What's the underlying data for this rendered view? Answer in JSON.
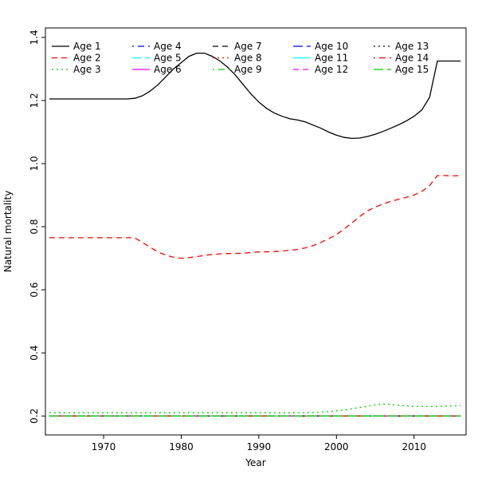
{
  "figure": {
    "background": "#ffffff"
  },
  "chart_data": {
    "type": "line",
    "title": "",
    "xlabel": "Year",
    "ylabel": "Natural mortality",
    "xlim": [
      1962.5,
      2016.7
    ],
    "ylim": [
      0.14,
      1.43
    ],
    "xticks": [
      1970,
      1980,
      1990,
      2000,
      2010
    ],
    "yticks": [
      0.2,
      0.4,
      0.6,
      0.8,
      1.0,
      1.2,
      1.4
    ],
    "grid": false,
    "legend_position": "top-left",
    "legend_rows": 3,
    "legend_columns": 5,
    "series": [
      {
        "name": "Age 1",
        "color": "#000000",
        "linetype": "solid",
        "points": [
          [
            1963,
            1.205
          ],
          [
            1973,
            1.205
          ],
          [
            1974,
            1.207
          ],
          [
            1975,
            1.215
          ],
          [
            1976,
            1.23
          ],
          [
            1977,
            1.25
          ],
          [
            1978,
            1.275
          ],
          [
            1979,
            1.3
          ],
          [
            1980,
            1.32
          ],
          [
            1981,
            1.34
          ],
          [
            1982,
            1.35
          ],
          [
            1983,
            1.35
          ],
          [
            1984,
            1.34
          ],
          [
            1985,
            1.325
          ],
          [
            1986,
            1.305
          ],
          [
            1987,
            1.28
          ],
          [
            1988,
            1.25
          ],
          [
            1989,
            1.22
          ],
          [
            1990,
            1.195
          ],
          [
            1991,
            1.175
          ],
          [
            1992,
            1.16
          ],
          [
            1993,
            1.15
          ],
          [
            1994,
            1.142
          ],
          [
            1995,
            1.138
          ],
          [
            1996,
            1.132
          ],
          [
            1997,
            1.122
          ],
          [
            1998,
            1.112
          ],
          [
            1999,
            1.1
          ],
          [
            2000,
            1.09
          ],
          [
            2001,
            1.083
          ],
          [
            2002,
            1.08
          ],
          [
            2003,
            1.081
          ],
          [
            2004,
            1.086
          ],
          [
            2005,
            1.093
          ],
          [
            2006,
            1.102
          ],
          [
            2007,
            1.112
          ],
          [
            2008,
            1.123
          ],
          [
            2009,
            1.135
          ],
          [
            2010,
            1.15
          ],
          [
            2011,
            1.17
          ],
          [
            2012,
            1.21
          ],
          [
            2013,
            1.325
          ],
          [
            2014,
            1.325
          ],
          [
            2015,
            1.325
          ],
          [
            2016,
            1.325
          ]
        ]
      },
      {
        "name": "Age 2",
        "color": "#FF0000",
        "linetype": "dashed",
        "points": [
          [
            1963,
            0.765
          ],
          [
            1973,
            0.765
          ],
          [
            1974,
            0.765
          ],
          [
            1975,
            0.75
          ],
          [
            1976,
            0.735
          ],
          [
            1977,
            0.72
          ],
          [
            1978,
            0.71
          ],
          [
            1979,
            0.703
          ],
          [
            1980,
            0.7
          ],
          [
            1981,
            0.702
          ],
          [
            1982,
            0.705
          ],
          [
            1983,
            0.709
          ],
          [
            1984,
            0.712
          ],
          [
            1985,
            0.714
          ],
          [
            1986,
            0.715
          ],
          [
            1988,
            0.716
          ],
          [
            1990,
            0.72
          ],
          [
            1992,
            0.721
          ],
          [
            1994,
            0.725
          ],
          [
            1995,
            0.728
          ],
          [
            1996,
            0.733
          ],
          [
            1997,
            0.74
          ],
          [
            1998,
            0.75
          ],
          [
            1999,
            0.762
          ],
          [
            2000,
            0.775
          ],
          [
            2001,
            0.793
          ],
          [
            2002,
            0.812
          ],
          [
            2003,
            0.832
          ],
          [
            2004,
            0.85
          ],
          [
            2005,
            0.862
          ],
          [
            2006,
            0.872
          ],
          [
            2007,
            0.88
          ],
          [
            2008,
            0.887
          ],
          [
            2009,
            0.893
          ],
          [
            2010,
            0.9
          ],
          [
            2011,
            0.912
          ],
          [
            2012,
            0.93
          ],
          [
            2013,
            0.962
          ],
          [
            2014,
            0.962
          ],
          [
            2015,
            0.961
          ],
          [
            2016,
            0.962
          ]
        ]
      },
      {
        "name": "Age 3",
        "color": "#00CD00",
        "linetype": "dotted",
        "points": [
          [
            1963,
            0.21
          ],
          [
            1995,
            0.21
          ],
          [
            1997,
            0.211
          ],
          [
            1999,
            0.214
          ],
          [
            2001,
            0.219
          ],
          [
            2003,
            0.227
          ],
          [
            2005,
            0.235
          ],
          [
            2006,
            0.238
          ],
          [
            2007,
            0.237
          ],
          [
            2008,
            0.234
          ],
          [
            2009,
            0.232
          ],
          [
            2010,
            0.23
          ],
          [
            2012,
            0.23
          ],
          [
            2013,
            0.23
          ],
          [
            2014,
            0.231
          ],
          [
            2015,
            0.232
          ],
          [
            2016,
            0.233
          ]
        ]
      },
      {
        "name": "Age 4",
        "color": "#0000FF",
        "linetype": "dotdash",
        "points": [
          [
            1963,
            0.2
          ],
          [
            2016,
            0.2
          ]
        ]
      },
      {
        "name": "Age 5",
        "color": "#00FFFF",
        "linetype": "longdash",
        "points": [
          [
            1963,
            0.2
          ],
          [
            2016,
            0.2
          ]
        ]
      },
      {
        "name": "Age 6",
        "color": "#FF00FF",
        "linetype": "solid",
        "points": [
          [
            1963,
            0.2
          ],
          [
            2016,
            0.2
          ]
        ]
      },
      {
        "name": "Age 7",
        "color": "#000000",
        "linetype": "dashed",
        "points": [
          [
            1963,
            0.2
          ],
          [
            2016,
            0.2
          ]
        ]
      },
      {
        "name": "Age 8",
        "color": "#FF0000",
        "linetype": "dotted",
        "points": [
          [
            1963,
            0.2
          ],
          [
            2016,
            0.2
          ]
        ]
      },
      {
        "name": "Age 9",
        "color": "#00CD00",
        "linetype": "dotdash",
        "points": [
          [
            1963,
            0.2
          ],
          [
            2016,
            0.2
          ]
        ]
      },
      {
        "name": "Age 10",
        "color": "#0000FF",
        "linetype": "longdash",
        "points": [
          [
            1963,
            0.2
          ],
          [
            2016,
            0.2
          ]
        ]
      },
      {
        "name": "Age 11",
        "color": "#00FFFF",
        "linetype": "solid",
        "points": [
          [
            1963,
            0.2
          ],
          [
            2016,
            0.2
          ]
        ]
      },
      {
        "name": "Age 12",
        "color": "#FF00FF",
        "linetype": "dashed",
        "points": [
          [
            1963,
            0.2
          ],
          [
            2016,
            0.2
          ]
        ]
      },
      {
        "name": "Age 13",
        "color": "#000000",
        "linetype": "dotted",
        "points": [
          [
            1963,
            0.2
          ],
          [
            2016,
            0.2
          ]
        ]
      },
      {
        "name": "Age 14",
        "color": "#FF0000",
        "linetype": "dotdash",
        "points": [
          [
            1963,
            0.2
          ],
          [
            2016,
            0.2
          ]
        ]
      },
      {
        "name": "Age 15",
        "color": "#00CD00",
        "linetype": "longdash",
        "points": [
          [
            1963,
            0.2
          ],
          [
            2016,
            0.2
          ]
        ]
      }
    ]
  }
}
